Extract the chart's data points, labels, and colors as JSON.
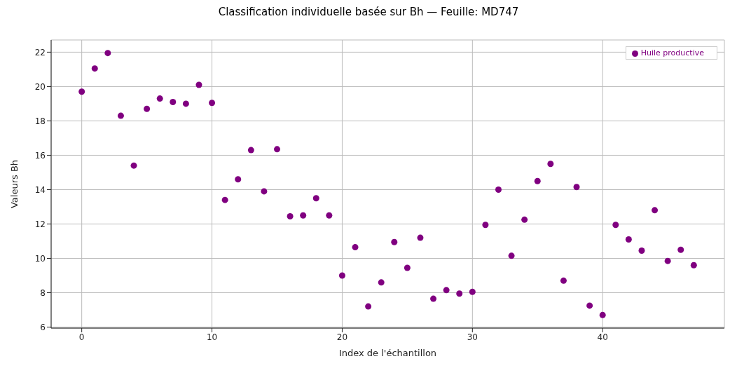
{
  "chart_data": {
    "type": "scatter",
    "title": "Classification individuelle basée sur Bh — Feuille: MD747",
    "xlabel": "Index de l'échantillon",
    "ylabel": "Valeurs Bh",
    "x": [
      0,
      1,
      2,
      3,
      4,
      5,
      6,
      7,
      8,
      9,
      10,
      11,
      12,
      13,
      14,
      15,
      16,
      17,
      18,
      19,
      20,
      21,
      22,
      23,
      24,
      25,
      26,
      27,
      28,
      29,
      30,
      31,
      32,
      33,
      34,
      35,
      36,
      37,
      38,
      39,
      40,
      41,
      42,
      43,
      44,
      45,
      46,
      47
    ],
    "series": [
      {
        "name": "Huile productive",
        "color": "#800080",
        "values": [
          19.7,
          21.05,
          21.95,
          18.3,
          15.4,
          18.7,
          19.3,
          19.1,
          19.0,
          20.1,
          19.05,
          13.4,
          14.6,
          16.3,
          13.9,
          16.35,
          12.45,
          12.5,
          13.5,
          12.5,
          9.0,
          10.65,
          7.2,
          8.6,
          10.95,
          9.45,
          11.2,
          7.65,
          8.15,
          7.95,
          8.05,
          11.95,
          14.0,
          10.15,
          12.25,
          14.5,
          15.5,
          8.7,
          14.15,
          7.25,
          6.7,
          11.95,
          11.1,
          10.45,
          12.8,
          9.85,
          10.5,
          9.6
        ]
      }
    ],
    "xlim": [
      -2.35,
      49.35
    ],
    "xticks": [
      0,
      10,
      20,
      30,
      40
    ],
    "ylim": [
      5.94,
      22.71
    ],
    "yticks": [
      6,
      8,
      10,
      12,
      14,
      16,
      18,
      20,
      22
    ],
    "grid": true,
    "legend": "top right",
    "marker": "circle"
  }
}
